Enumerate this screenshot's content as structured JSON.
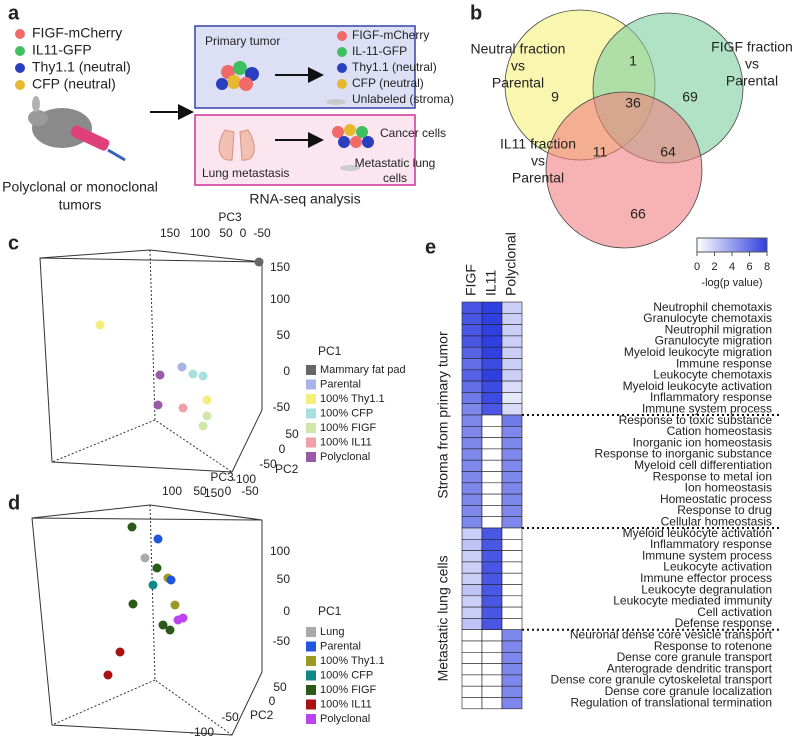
{
  "panel_a": {
    "letter": "a",
    "legend": [
      {
        "text": "FIGF-mCherry",
        "color": "#f06a6a"
      },
      {
        "text": "IL11-GFP",
        "color": "#3fbf5f"
      },
      {
        "text": "Thy1.1 (neutral)",
        "color": "#2a3fbf"
      },
      {
        "text": "CFP (neutral)",
        "color": "#e8b830"
      }
    ],
    "caption": [
      "Polyclonal or monoclonal",
      "tumors"
    ],
    "primary_box": {
      "title": "Primary tumor",
      "items": [
        {
          "text": "FIGF-mCherry",
          "color": "#f06a6a"
        },
        {
          "text": "IL-11-GFP",
          "color": "#3fbf5f"
        },
        {
          "text": "Thy1.1 (neutral)",
          "color": "#2a3fbf"
        },
        {
          "text": "CFP (neutral)",
          "color": "#e8b830"
        }
      ],
      "stroma": "Unlabeled (stroma)"
    },
    "metastasis_box": {
      "title": "Lung metastasis",
      "cancer": "Cancer cells",
      "lung": [
        "Metastatic lung",
        "cells"
      ]
    },
    "footer": "RNA-seq analysis"
  },
  "panel_b": {
    "letter": "b",
    "sets": [
      {
        "label": [
          "Neutral fraction",
          "vs",
          "Parental"
        ],
        "color": "#f3f07a"
      },
      {
        "label": [
          "FIGF fraction",
          "vs",
          "Parental"
        ],
        "color": "#7fcfa0"
      },
      {
        "label": [
          "IL11 fraction",
          "vs",
          "Parental"
        ],
        "color": "#f28080"
      }
    ],
    "regions": [
      9,
      1,
      69,
      11,
      36,
      64,
      66
    ]
  },
  "panel_c": {
    "letter": "c",
    "axes": {
      "pc3": "PC3",
      "pc1": "PC1",
      "pc2": "PC2"
    },
    "pc3_ticks": [
      150,
      100,
      50,
      0,
      -50
    ],
    "pc1_ticks": [
      150,
      100,
      50,
      0,
      -50
    ],
    "pc2_ticks": [
      50,
      0,
      -50,
      -100,
      -150
    ],
    "legend": [
      {
        "text": "Mammary fat pad",
        "color": "#666666"
      },
      {
        "text": "Parental",
        "color": "#a8b4e8"
      },
      {
        "text": "100% Thy1.1",
        "color": "#f3ee7a"
      },
      {
        "text": "100% CFP",
        "color": "#a8e0e0"
      },
      {
        "text": "100% FIGF",
        "color": "#cfe8a8"
      },
      {
        "text": "100% IL11",
        "color": "#f0a0a8"
      },
      {
        "text": "Polyclonal",
        "color": "#9a5aaa"
      }
    ]
  },
  "panel_d": {
    "letter": "d",
    "axes": {
      "pc3": "PC3",
      "pc1": "PC1",
      "pc2": "PC2"
    },
    "pc3_ticks": [
      100,
      50,
      0,
      -50
    ],
    "pc1_ticks": [
      100,
      50,
      0,
      -50
    ],
    "pc2_ticks": [
      50,
      0,
      -50,
      -100
    ],
    "legend": [
      {
        "text": "Lung",
        "color": "#aaaaaa"
      },
      {
        "text": "Parental",
        "color": "#2255dd"
      },
      {
        "text": "100% Thy1.1",
        "color": "#9a9a22"
      },
      {
        "text": "100% CFP",
        "color": "#118888"
      },
      {
        "text": "100% FIGF",
        "color": "#2a5a1a"
      },
      {
        "text": "100% IL11",
        "color": "#aa1111"
      },
      {
        "text": "Polyclonal",
        "color": "#bb44ee"
      }
    ]
  },
  "panel_e": {
    "letter": "e",
    "columns": [
      "FIGF",
      "IL11",
      "Polyclonal"
    ],
    "colorbar": {
      "range": [
        0,
        8
      ],
      "ticks": [
        0,
        2,
        4,
        6,
        8
      ],
      "label": "-log(p value)",
      "low": "#ffffff",
      "high": "#2f3fe0"
    },
    "sections": [
      {
        "label": "Stroma from primary tumor",
        "blocks": [
          [
            {
              "term": "Neutrophil chemotaxis",
              "values": [
                7,
                8,
                2
              ]
            },
            {
              "term": "Granulocyte chemotaxis",
              "values": [
                7,
                8,
                2
              ]
            },
            {
              "term": "Neutrophil migration",
              "values": [
                7,
                8,
                2
              ]
            },
            {
              "term": "Granulocyte migration",
              "values": [
                7,
                8,
                2
              ]
            },
            {
              "term": "Myeloid leukocyte migration",
              "values": [
                6.5,
                8,
                2
              ]
            },
            {
              "term": "Immune response",
              "values": [
                6,
                7.5,
                2
              ]
            },
            {
              "term": "Leukocyte chemotaxis",
              "values": [
                6.5,
                8,
                2
              ]
            },
            {
              "term": "Myeloid leukocyte activation",
              "values": [
                6,
                7.5,
                1.5
              ]
            },
            {
              "term": "Inflammatory response",
              "values": [
                5.5,
                7.5,
                1
              ]
            },
            {
              "term": "Immune system process",
              "values": [
                5,
                7,
                1.5
              ]
            }
          ],
          [
            {
              "term": "Response to toxic substance",
              "values": [
                5,
                0,
                5.5
              ]
            },
            {
              "term": "Cation homeostasis",
              "values": [
                5,
                0,
                5
              ]
            },
            {
              "term": "Inorganic ion homeostasis",
              "values": [
                5,
                0,
                5
              ]
            },
            {
              "term": "Response to inorganic substance",
              "values": [
                5,
                0,
                5
              ]
            },
            {
              "term": "Myeloid cell differentiation",
              "values": [
                5,
                0,
                5
              ]
            },
            {
              "term": "Response to metal ion",
              "values": [
                5,
                0,
                5
              ]
            },
            {
              "term": "Ion homeostasis",
              "values": [
                5,
                0,
                5
              ]
            },
            {
              "term": "Homeostatic process",
              "values": [
                5,
                0,
                5
              ]
            },
            {
              "term": "Response to drug",
              "values": [
                5,
                0,
                5
              ]
            },
            {
              "term": "Cellular homeostasis",
              "values": [
                5,
                0,
                5
              ]
            }
          ]
        ]
      },
      {
        "label": "Metastatic lung cells",
        "blocks": [
          [
            {
              "term": "Myeloid leukocyte activation",
              "values": [
                2,
                7,
                0
              ]
            },
            {
              "term": "Inflammatory response",
              "values": [
                2.5,
                7,
                0
              ]
            },
            {
              "term": "Immune system process",
              "values": [
                2,
                7,
                0
              ]
            },
            {
              "term": "Leukocyte activation",
              "values": [
                2,
                7,
                0
              ]
            },
            {
              "term": "Immune effector process",
              "values": [
                2,
                7,
                0
              ]
            },
            {
              "term": "Leukocyte degranulation",
              "values": [
                2.5,
                7,
                0
              ]
            },
            {
              "term": "Leukocyte mediated immunity",
              "values": [
                2,
                7,
                0
              ]
            },
            {
              "term": "Cell activation",
              "values": [
                2,
                7,
                0
              ]
            },
            {
              "term": "Defense response",
              "values": [
                2.5,
                7,
                0
              ]
            }
          ],
          [
            {
              "term": "Neuronal dense core vesicle transport",
              "values": [
                0,
                0,
                5
              ]
            },
            {
              "term": "Response to rotenone",
              "values": [
                0,
                0,
                5
              ]
            },
            {
              "term": "Dense core granule transport",
              "values": [
                0,
                0,
                5
              ]
            },
            {
              "term": "Anterograde dendritic transport",
              "values": [
                0,
                0,
                5
              ]
            },
            {
              "term": "Dense core granule cytoskeletal transport",
              "values": [
                0,
                0,
                5
              ]
            },
            {
              "term": "Dense core granule localization",
              "values": [
                0,
                0,
                5
              ]
            },
            {
              "term": "Regulation of translational termination",
              "values": [
                0,
                0,
                5
              ]
            }
          ]
        ]
      }
    ]
  }
}
